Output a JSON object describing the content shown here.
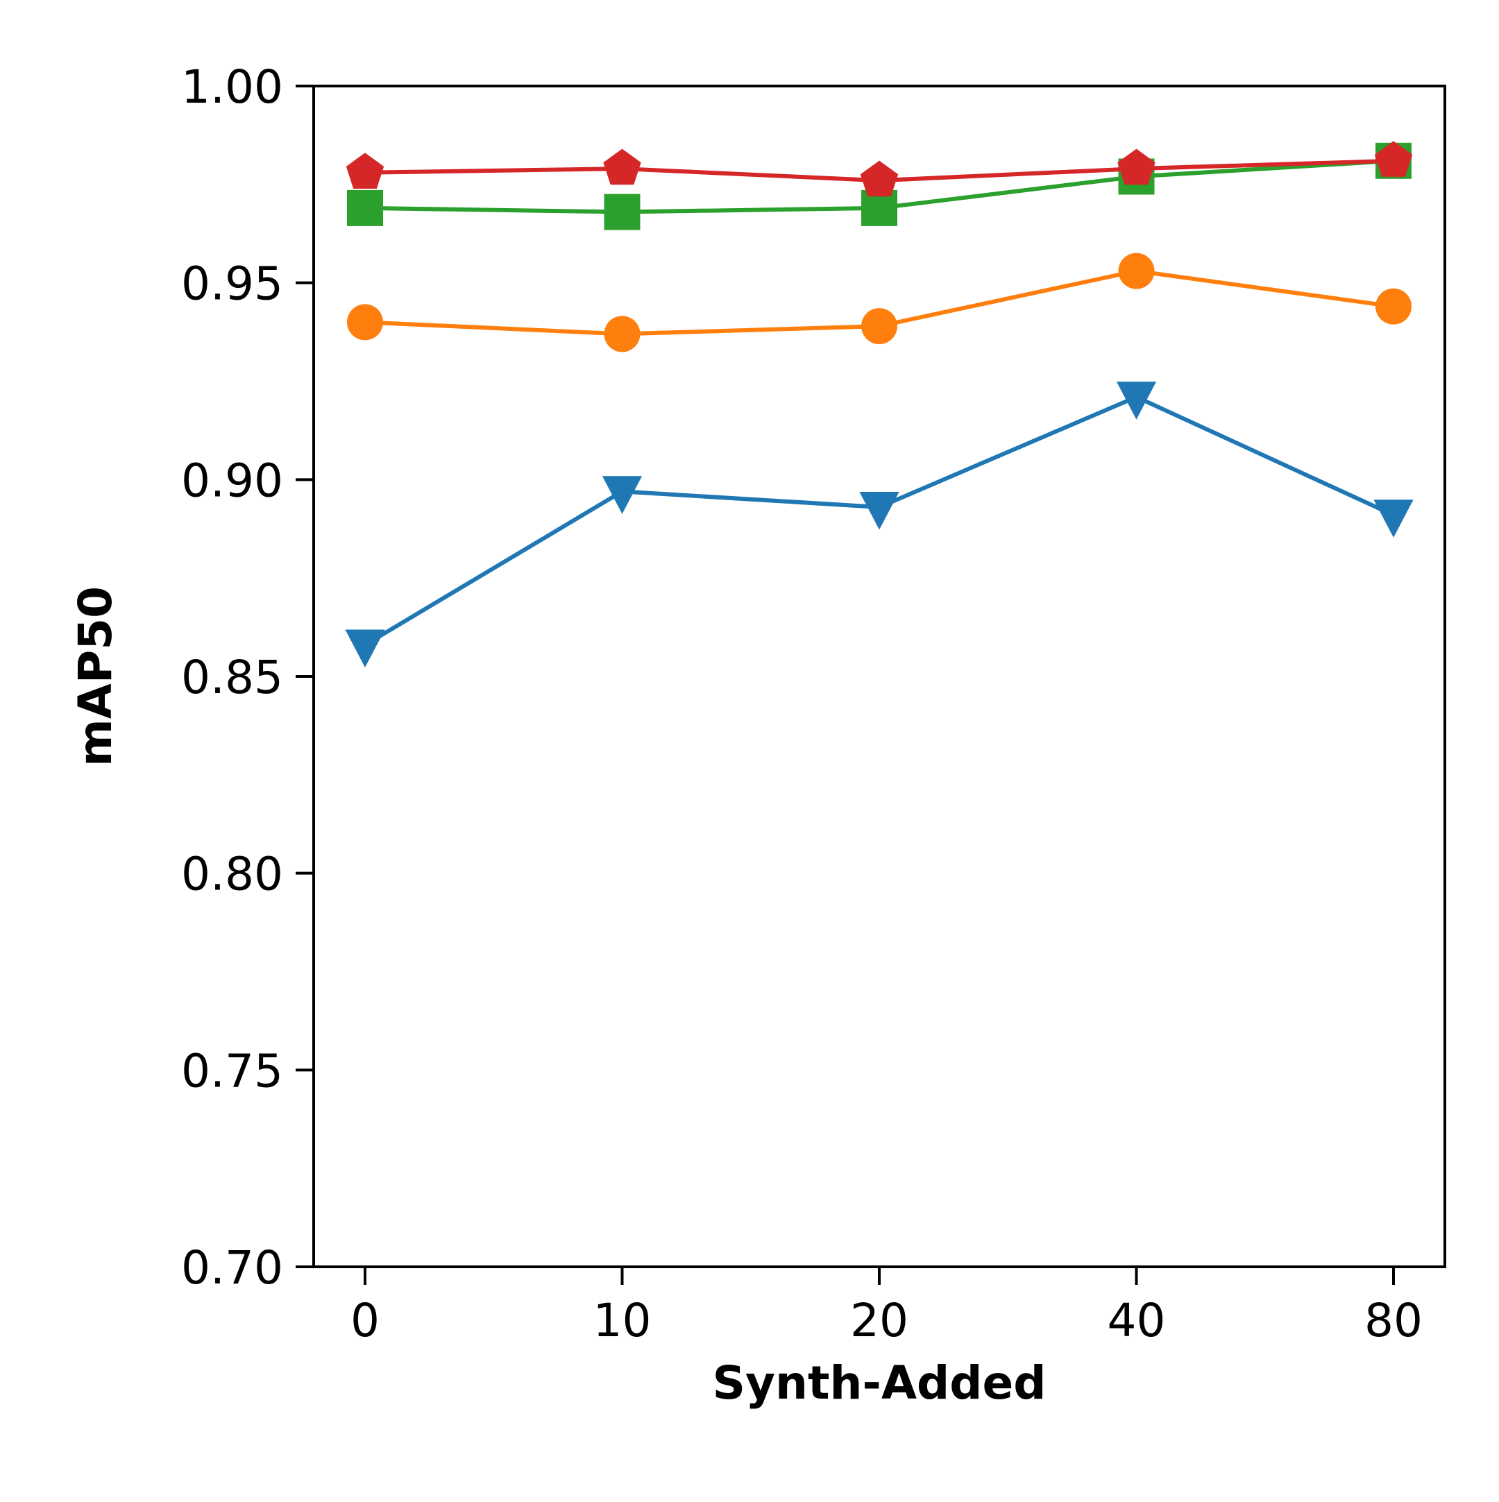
{
  "chart_data": {
    "type": "line",
    "title": "",
    "xlabel": "Synth-Added",
    "ylabel": "mAP50",
    "categories": [
      "0",
      "10",
      "20",
      "40",
      "80"
    ],
    "ylim": [
      0.7,
      1.0
    ],
    "yticks": [
      "0.70",
      "0.75",
      "0.80",
      "0.85",
      "0.90",
      "0.95",
      "1.00"
    ],
    "grid": false,
    "legend": "none",
    "series": [
      {
        "color": "#1f77b4",
        "marker": "triangle-down",
        "values": [
          0.858,
          0.897,
          0.893,
          0.921,
          0.891
        ]
      },
      {
        "color": "#ff7f0e",
        "marker": "circle",
        "values": [
          0.94,
          0.937,
          0.939,
          0.953,
          0.944
        ]
      },
      {
        "color": "#2ca02c",
        "marker": "square",
        "values": [
          0.969,
          0.968,
          0.969,
          0.977,
          0.981
        ]
      },
      {
        "color": "#d62728",
        "marker": "pentagon",
        "values": [
          0.978,
          0.979,
          0.976,
          0.979,
          0.981
        ]
      }
    ]
  }
}
